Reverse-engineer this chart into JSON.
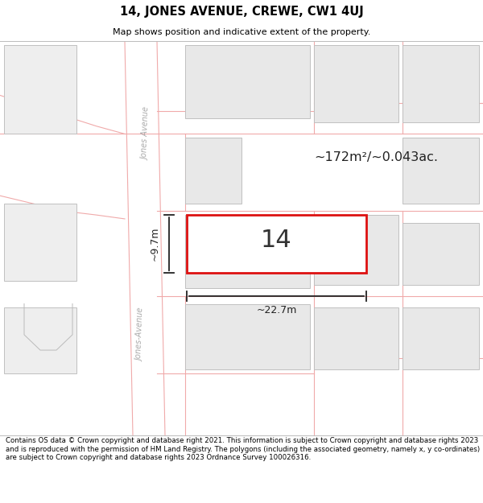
{
  "title_line1": "14, JONES AVENUE, CREWE, CW1 4UJ",
  "title_line2": "Map shows position and indicative extent of the property.",
  "footer_text": "Contains OS data © Crown copyright and database right 2021. This information is subject to Crown copyright and database rights 2023 and is reproduced with the permission of HM Land Registry. The polygons (including the associated geometry, namely x, y co-ordinates) are subject to Crown copyright and database rights 2023 Ordnance Survey 100026316.",
  "area_label": "~172m²/~0.043ac.",
  "number_label": "14",
  "width_label": "~22.7m",
  "height_label": "~9.7m",
  "bg_color": "#ffffff",
  "road_color": "#f0aaaa",
  "plot_border_color": "#dd1111",
  "block_fill": "#e8e8e8",
  "block_border": "#c0c0c0",
  "title_bg": "#ffffff",
  "footer_bg": "#ffffff",
  "street_color": "#aaaaaa",
  "dim_color": "#222222",
  "street_label_top": "Jones Avenue",
  "street_label_bot": "Jones-Avenue"
}
